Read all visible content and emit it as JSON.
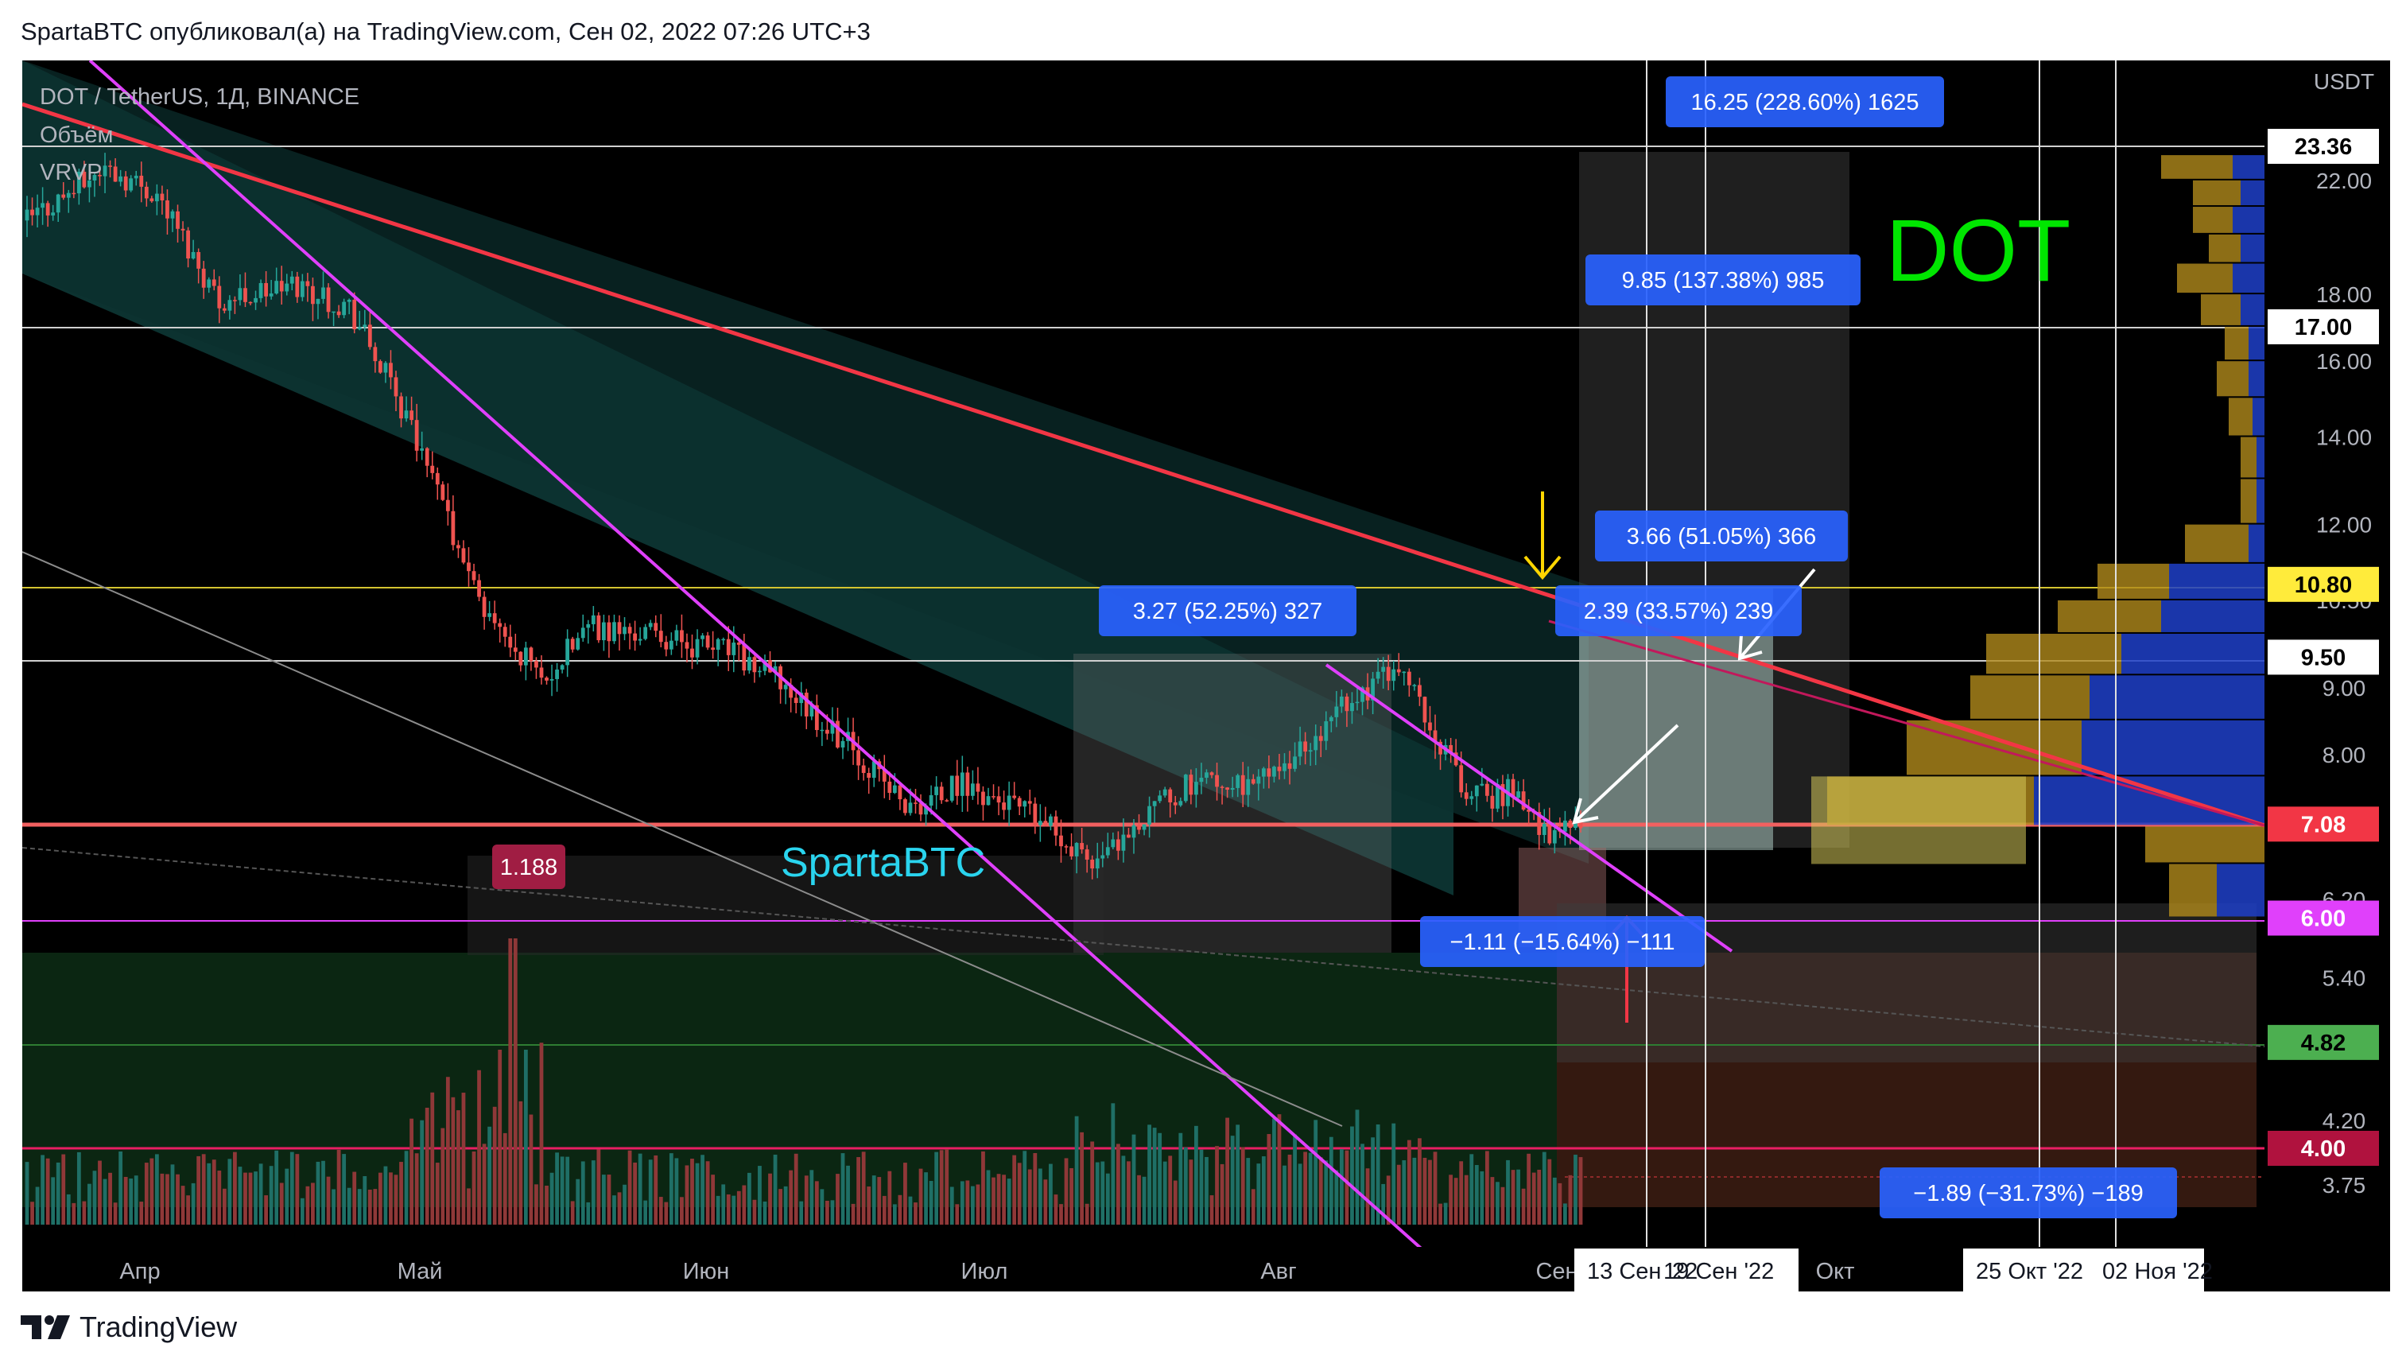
{
  "header": {
    "title": "SpartaBTC опубликовал(а) на TradingView.com, Сен 02, 2022 07:26 UTC+3"
  },
  "footer": {
    "brand": "TradingView",
    "logo": "tradingview-logo"
  },
  "legend": {
    "symbol": "DOT / TetherUS, 1Д, BINANCE",
    "volume": "Объём",
    "vrvp": "VRVP"
  },
  "watermark": "SpartaBTC",
  "big_label": "DOT",
  "currency": "USDT",
  "colors": {
    "up": "#26a69a",
    "down": "#ef5350",
    "resistance": "#f23645",
    "trendline": "#e040fb",
    "label_blue": "#2962ff",
    "big_label": "#00e600"
  },
  "annotations": {
    "measure_1": "16.25 (228.60%) 1625",
    "measure_2": "9.85 (137.38%) 985",
    "measure_3": "3.66 (51.05%) 366",
    "measure_4": "2.39 (33.57%) 239",
    "measure_5": "3.27 (52.25%) 327",
    "measure_6": "−1.11 (−15.64%) −111",
    "measure_7": "−1.89 (−31.73%) −189",
    "ratio": "1.188"
  },
  "chart_data": {
    "type": "candlestick",
    "symbol": "DOT/USDT",
    "interval": "1D",
    "y_scale": "log",
    "y_ticks": [
      "22.00",
      "18.00",
      "16.00",
      "14.00",
      "12.00",
      "10.50",
      "9.00",
      "8.00",
      "6.20",
      "5.40",
      "4.20",
      "3.75"
    ],
    "price_labels": [
      {
        "value": "23.36",
        "kind": "white"
      },
      {
        "value": "17.00",
        "kind": "white"
      },
      {
        "value": "10.80",
        "kind": "yellow"
      },
      {
        "value": "9.50",
        "kind": "white"
      },
      {
        "value": "7.08",
        "kind": "red"
      },
      {
        "value": "6.00",
        "kind": "magenta"
      },
      {
        "value": "4.82",
        "kind": "green"
      },
      {
        "value": "4.00",
        "kind": "crimson"
      }
    ],
    "x_labels": [
      "Апр",
      "Май",
      "Июн",
      "Июл",
      "Авг",
      "Сен",
      "Окт"
    ],
    "x_date_labels": [
      "13 Сен '22",
      "19 Сен '22",
      "25 Окт '22",
      "02 Ноя '22"
    ],
    "series": [
      {
        "name": "Price",
        "anchors": [
          [
            0,
            20.5
          ],
          [
            15,
            22.5
          ],
          [
            25,
            21.5
          ],
          [
            37,
            17.8
          ],
          [
            52,
            18.3
          ],
          [
            62,
            17.6
          ],
          [
            72,
            14.8
          ],
          [
            88,
            10.2
          ],
          [
            100,
            9.2
          ],
          [
            108,
            10.0
          ],
          [
            120,
            9.9
          ],
          [
            135,
            9.6
          ],
          [
            145,
            9.1
          ],
          [
            160,
            8.0
          ],
          [
            170,
            7.25
          ],
          [
            180,
            7.6
          ],
          [
            190,
            7.3
          ],
          [
            200,
            6.9
          ],
          [
            205,
            6.6
          ],
          [
            212,
            7.0
          ],
          [
            225,
            7.7
          ],
          [
            235,
            7.5
          ],
          [
            245,
            8.1
          ],
          [
            255,
            8.8
          ],
          [
            262,
            9.3
          ],
          [
            266,
            9.1
          ],
          [
            272,
            8.2
          ],
          [
            278,
            7.4
          ],
          [
            285,
            7.5
          ],
          [
            293,
            7.0
          ],
          [
            298,
            7.05
          ]
        ],
        "total_days": 300
      }
    ],
    "volume_note": "daily volume bars with spike in mid-May"
  }
}
